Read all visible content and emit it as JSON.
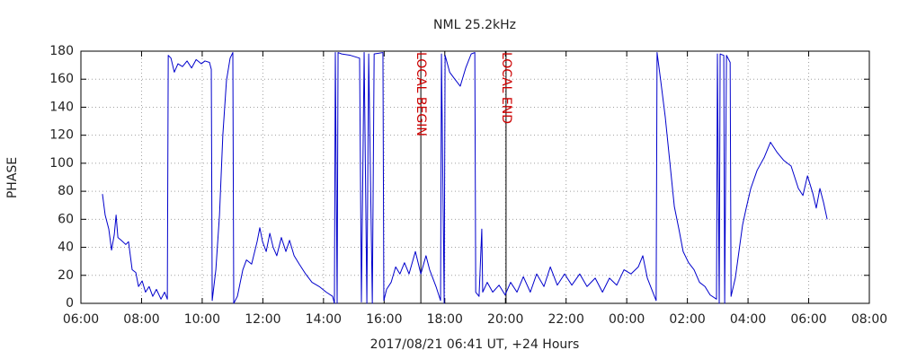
{
  "chart_data": {
    "type": "line",
    "title": "NML 25.2kHz",
    "xlabel": "2017/08/21 06:41 UT, +24 Hours",
    "ylabel": "PHASE",
    "color": "#0000cc",
    "grid": true,
    "xlim": [
      6,
      32
    ],
    "xticks": [
      {
        "value": 6,
        "label": "06:00"
      },
      {
        "value": 8,
        "label": "08:00"
      },
      {
        "value": 10,
        "label": "10:00"
      },
      {
        "value": 12,
        "label": "12:00"
      },
      {
        "value": 14,
        "label": "14:00"
      },
      {
        "value": 16,
        "label": "16:00"
      },
      {
        "value": 18,
        "label": "18:00"
      },
      {
        "value": 20,
        "label": "20:00"
      },
      {
        "value": 22,
        "label": "22:00"
      },
      {
        "value": 24,
        "label": "00:00"
      },
      {
        "value": 26,
        "label": "02:00"
      },
      {
        "value": 28,
        "label": "04:00"
      },
      {
        "value": 30,
        "label": "06:00"
      },
      {
        "value": 32,
        "label": "08:00"
      }
    ],
    "ylim": [
      0,
      180
    ],
    "yticks": [
      0,
      20,
      40,
      60,
      80,
      100,
      120,
      140,
      160,
      180
    ],
    "annotations": [
      {
        "text": "LOCAL BEGIN",
        "x": 17.21,
        "color": "#cc0000"
      },
      {
        "text": "LOCAL END",
        "x": 20.02,
        "color": "#cc0000"
      }
    ],
    "x": [
      6.71,
      6.8,
      6.92,
      7.01,
      7.1,
      7.16,
      7.22,
      7.33,
      7.48,
      7.57,
      7.69,
      7.81,
      7.9,
      8.02,
      8.13,
      8.25,
      8.37,
      8.49,
      8.64,
      8.76,
      8.85,
      8.88,
      8.97,
      9.08,
      9.2,
      9.35,
      9.5,
      9.65,
      9.8,
      9.97,
      10.09,
      10.24,
      10.3,
      10.33,
      10.45,
      10.57,
      10.68,
      10.8,
      10.92,
      11.01,
      11.04,
      11.16,
      11.34,
      11.46,
      11.63,
      11.81,
      11.9,
      11.99,
      12.11,
      12.23,
      12.34,
      12.46,
      12.61,
      12.76,
      12.88,
      13.03,
      13.2,
      13.41,
      13.62,
      13.86,
      14.09,
      14.3,
      14.36,
      14.39,
      14.45,
      14.48,
      14.6,
      14.89,
      15.19,
      15.25,
      15.34,
      15.43,
      15.49,
      15.61,
      15.67,
      15.96,
      15.99,
      16.08,
      16.23,
      16.38,
      16.52,
      16.67,
      16.82,
      17.03,
      17.21,
      17.38,
      17.5,
      17.71,
      17.86,
      17.89,
      17.98,
      18.01,
      18.16,
      18.33,
      18.51,
      18.69,
      18.87,
      18.99,
      19.02,
      19.13,
      19.22,
      19.25,
      19.4,
      19.58,
      19.79,
      19.99,
      20.17,
      20.38,
      20.59,
      20.82,
      21.03,
      21.27,
      21.48,
      21.71,
      21.95,
      22.19,
      22.45,
      22.69,
      22.96,
      23.2,
      23.43,
      23.67,
      23.91,
      24.14,
      24.38,
      24.53,
      24.68,
      24.86,
      24.97,
      25.0,
      25.12,
      25.27,
      25.42,
      25.57,
      25.72,
      25.86,
      26.04,
      26.22,
      26.4,
      26.58,
      26.75,
      26.96,
      26.99,
      27.05,
      27.08,
      27.2,
      27.23,
      27.29,
      27.41,
      27.44,
      27.58,
      27.7,
      27.82,
      27.94,
      28.09,
      28.3,
      28.53,
      28.74,
      28.95,
      29.18,
      29.42,
      29.66,
      29.81,
      29.96,
      30.13,
      30.25,
      30.37,
      30.49,
      30.61
    ],
    "values": [
      78,
      63,
      53,
      38,
      49,
      63,
      47,
      45,
      42,
      44,
      24,
      22,
      12,
      16,
      8,
      12,
      5,
      10,
      3,
      8,
      3,
      177,
      175,
      165,
      171,
      169,
      173,
      168,
      174,
      171,
      173,
      172,
      167,
      2,
      24,
      63,
      120,
      159,
      175,
      179,
      0,
      5,
      24,
      31,
      28,
      44,
      54,
      44,
      37,
      50,
      40,
      34,
      47,
      37,
      45,
      34,
      28,
      21,
      15,
      12,
      8,
      5,
      0,
      179,
      0,
      179,
      178,
      177,
      175,
      1,
      179,
      0,
      178,
      0,
      178,
      179,
      2,
      10,
      15,
      26,
      21,
      29,
      21,
      37,
      21,
      34,
      24,
      12,
      2,
      178,
      0,
      177,
      165,
      160,
      155,
      168,
      178,
      179,
      8,
      5,
      53,
      8,
      15,
      8,
      13,
      6,
      15,
      8,
      19,
      8,
      21,
      12,
      26,
      13,
      21,
      13,
      21,
      12,
      18,
      8,
      18,
      13,
      24,
      21,
      26,
      34,
      18,
      8,
      2,
      179,
      159,
      133,
      101,
      69,
      53,
      37,
      29,
      24,
      15,
      12,
      6,
      3,
      178,
      0,
      178,
      177,
      0,
      177,
      172,
      5,
      18,
      37,
      56,
      68,
      82,
      95,
      104,
      115,
      108,
      102,
      98,
      82,
      77,
      91,
      79,
      68,
      82,
      72,
      60
    ]
  }
}
